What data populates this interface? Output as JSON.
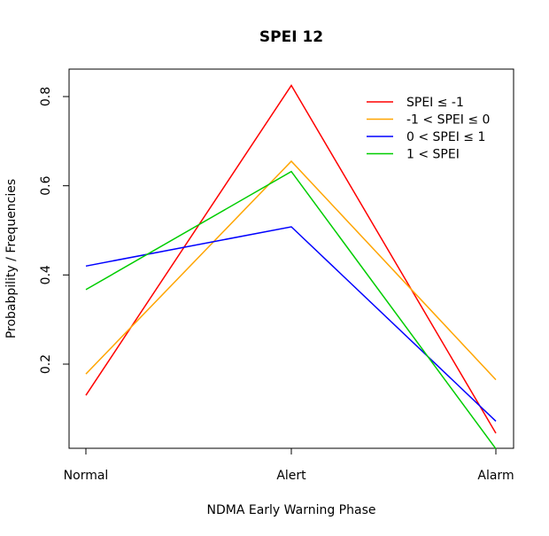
{
  "chart_data": {
    "type": "line",
    "title": "SPEI 12",
    "xlabel": "NDMA Early Warning Phase",
    "ylabel": "Probabpility / Frequencies",
    "categories": [
      "Normal",
      "Alert",
      "Alarm"
    ],
    "yticks": [
      "0.2",
      "0.4",
      "0.6",
      "0.8"
    ],
    "ylim": [
      0.01,
      0.84
    ],
    "grid": false,
    "legend_position": "top-right",
    "series": [
      {
        "name": "SPEI ≤ -1",
        "color": "#ff0000",
        "values": [
          0.13,
          0.825,
          0.045
        ]
      },
      {
        "name": "-1 < SPEI ≤ 0",
        "color": "#ffa500",
        "values": [
          0.178,
          0.655,
          0.165
        ]
      },
      {
        "name": "0 < SPEI ≤ 1",
        "color": "#0000ff",
        "values": [
          0.42,
          0.508,
          0.072
        ]
      },
      {
        "name": "1 < SPEI",
        "color": "#00cd00",
        "values": [
          0.367,
          0.632,
          0.01
        ]
      }
    ]
  }
}
